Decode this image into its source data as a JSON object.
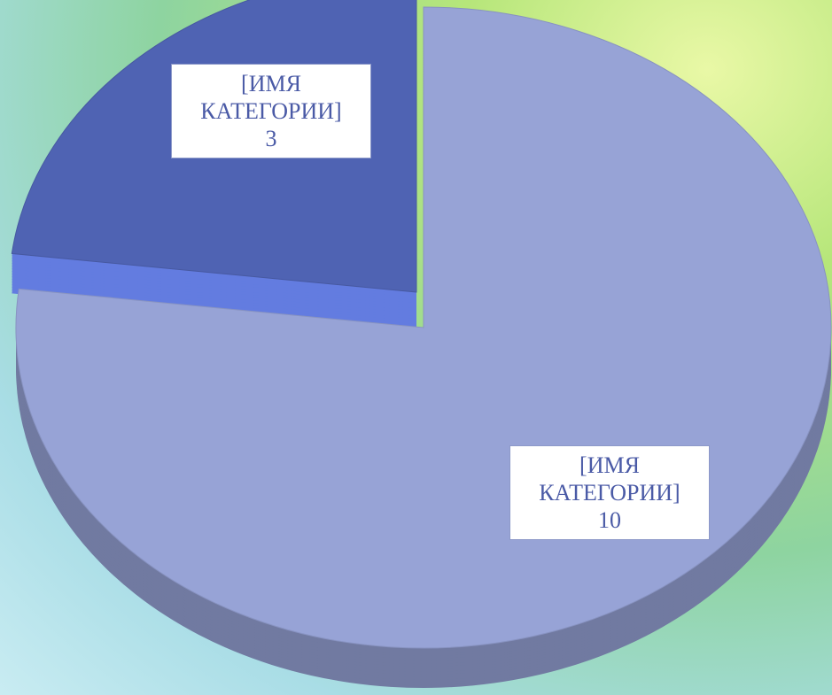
{
  "chart_data": {
    "type": "pie",
    "categories": [
      "[ИМЯ КАТЕГОРИИ]",
      "[ИМЯ КАТЕГОРИИ]"
    ],
    "values": [
      10,
      3
    ],
    "colors": [
      "#97a3d6",
      "#4f63b3"
    ]
  }
}
